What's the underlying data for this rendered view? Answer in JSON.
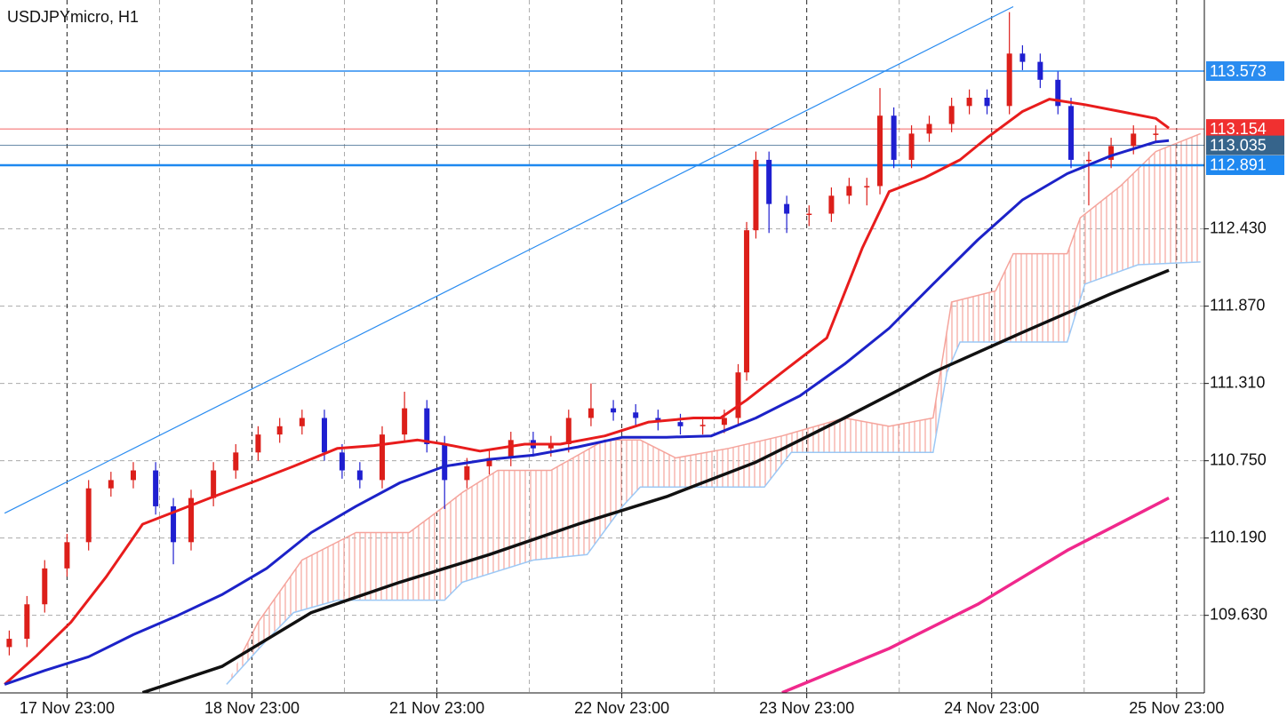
{
  "chart_data": {
    "type": "candlestick",
    "title": "USDJPYmicro, H1",
    "xlim": [
      0,
      156.3
    ],
    "ylim": [
      109.068,
      114.088
    ],
    "xticks": [
      {
        "value": 8.7,
        "label": "17 Nov 23:00"
      },
      {
        "value": 32.7,
        "label": "18 Nov 23:00"
      },
      {
        "value": 56.7,
        "label": "21 Nov 23:00"
      },
      {
        "value": 80.7,
        "label": "22 Nov 23:00"
      },
      {
        "value": 104.7,
        "label": "23 Nov 23:00"
      },
      {
        "value": 128.7,
        "label": "24 Nov 23:00"
      },
      {
        "value": 152.7,
        "label": "25 Nov 23:00"
      }
    ],
    "xminor": [
      20.7,
      44.7,
      68.7,
      92.7,
      116.7,
      140.7
    ],
    "yticks": [
      {
        "value": 112.43,
        "label": "112.430"
      },
      {
        "value": 111.87,
        "label": "111.870"
      },
      {
        "value": 111.31,
        "label": "111.310"
      },
      {
        "value": 110.75,
        "label": "110.750"
      },
      {
        "value": 110.19,
        "label": "110.190"
      },
      {
        "value": 109.63,
        "label": "109.630"
      }
    ],
    "grid": true,
    "up_color": "#dc1f1a",
    "down_color": "#1f1fd0",
    "x": [
      1.2,
      3.5,
      5.8,
      8.7,
      11.5,
      14.4,
      17.3,
      20.2,
      22.5,
      24.8,
      27.7,
      30.6,
      33.5,
      36.3,
      39.2,
      42.1,
      44.4,
      46.7,
      49.6,
      52.5,
      55.4,
      57.7,
      60.6,
      63.5,
      66.3,
      69.2,
      71.5,
      73.8,
      76.7,
      79.6,
      82.5,
      85.4,
      88.3,
      91.2,
      94.0,
      95.8,
      96.9,
      98.1,
      99.8,
      102.1,
      105.0,
      107.9,
      110.2,
      112.5,
      114.2,
      116.0,
      118.3,
      120.6,
      123.5,
      125.8,
      128.1,
      131.0,
      132.7,
      135.0,
      137.3,
      139.0,
      141.3,
      144.2,
      147.1,
      150.0
    ],
    "open": [
      109.4,
      109.46,
      109.71,
      109.97,
      110.16,
      110.55,
      110.61,
      110.68,
      110.42,
      110.16,
      110.48,
      110.68,
      110.81,
      110.94,
      111.0,
      111.06,
      110.81,
      110.68,
      110.61,
      110.94,
      111.13,
      110.87,
      110.61,
      110.71,
      110.77,
      110.9,
      110.84,
      110.87,
      111.06,
      111.13,
      111.1,
      111.06,
      111.03,
      111.0,
      111.01,
      111.06,
      111.39,
      112.42,
      112.93,
      112.61,
      112.54,
      112.54,
      112.67,
      112.74,
      112.74,
      113.25,
      112.93,
      113.12,
      113.19,
      113.32,
      113.38,
      113.32,
      113.7,
      113.64,
      113.51,
      113.32,
      112.93,
      112.93,
      113.03,
      113.12
    ],
    "high": [
      109.52,
      109.77,
      110.03,
      110.22,
      110.61,
      110.67,
      110.74,
      110.74,
      110.48,
      110.54,
      110.74,
      110.87,
      111.0,
      111.06,
      111.12,
      111.12,
      110.87,
      110.74,
      111.0,
      111.25,
      111.19,
      110.93,
      110.77,
      110.83,
      110.96,
      110.96,
      110.93,
      111.12,
      111.31,
      111.19,
      111.16,
      111.12,
      111.09,
      111.07,
      111.12,
      111.45,
      112.48,
      112.99,
      112.99,
      112.67,
      112.6,
      112.73,
      112.8,
      112.8,
      113.45,
      113.31,
      113.18,
      113.25,
      113.38,
      113.44,
      113.44,
      114.0,
      113.76,
      113.7,
      113.57,
      113.38,
      112.99,
      113.09,
      113.18,
      113.18
    ],
    "low": [
      109.34,
      109.4,
      109.65,
      109.91,
      110.1,
      110.49,
      110.55,
      110.36,
      110.0,
      110.1,
      110.42,
      110.62,
      110.75,
      110.88,
      110.94,
      110.75,
      110.62,
      110.55,
      110.55,
      110.88,
      110.81,
      110.4,
      110.55,
      110.65,
      110.71,
      110.78,
      110.78,
      110.81,
      111.0,
      111.04,
      111.0,
      110.97,
      110.94,
      110.94,
      110.95,
      111.0,
      111.33,
      112.36,
      112.4,
      112.4,
      112.45,
      112.48,
      112.61,
      112.6,
      112.68,
      112.87,
      112.87,
      113.06,
      113.13,
      113.26,
      113.26,
      113.26,
      113.58,
      113.45,
      113.26,
      112.87,
      112.6,
      112.87,
      112.97,
      113.06
    ],
    "close": [
      109.46,
      109.71,
      109.97,
      110.16,
      110.55,
      110.61,
      110.68,
      110.42,
      110.16,
      110.48,
      110.68,
      110.81,
      110.94,
      111.0,
      111.06,
      110.81,
      110.68,
      110.61,
      110.94,
      111.13,
      110.87,
      110.61,
      110.71,
      110.77,
      110.9,
      110.84,
      110.87,
      111.06,
      111.13,
      111.1,
      111.06,
      111.03,
      111.0,
      111.01,
      111.06,
      111.39,
      112.42,
      112.93,
      112.61,
      112.54,
      112.54,
      112.67,
      112.74,
      112.74,
      113.25,
      112.93,
      113.12,
      113.19,
      113.32,
      113.38,
      113.32,
      113.7,
      113.64,
      113.51,
      113.32,
      112.93,
      112.93,
      113.03,
      113.12,
      113.12
    ],
    "cloud": {
      "color": "#f5a49c",
      "span_a": {
        "color": "#f5a49c",
        "x": [
          31.2,
          33.5,
          39.2,
          46.2,
          53.1,
          57.7,
          60.0,
          64.6,
          71.5,
          78.5,
          83.1,
          87.7,
          94.6,
          101.5,
          109.6,
          115.4,
          121.1,
          123.5,
          129.2,
          131.5,
          138.5,
          140.2,
          145.4,
          150.0,
          155.8
        ],
        "values": [
          109.33,
          109.58,
          110.03,
          110.23,
          110.23,
          110.42,
          110.52,
          110.68,
          110.68,
          110.9,
          110.9,
          110.77,
          110.84,
          110.93,
          111.06,
          111.0,
          111.06,
          111.9,
          111.98,
          112.25,
          112.25,
          112.51,
          112.74,
          112.99,
          113.12
        ]
      },
      "span_b": {
        "color": "#9cc8f5",
        "x": [
          29.4,
          34.6,
          38.1,
          43.8,
          57.7,
          60.0,
          69.2,
          76.2,
          80.8,
          83.1,
          99.2,
          102.7,
          121.1,
          122.9,
          124.6,
          138.5,
          140.8,
          147.7,
          155.8
        ],
        "values": [
          109.13,
          109.45,
          109.65,
          109.74,
          109.74,
          109.87,
          110.03,
          110.07,
          110.42,
          110.56,
          110.56,
          110.81,
          110.81,
          111.39,
          111.61,
          111.61,
          112.03,
          112.17,
          112.19
        ]
      }
    },
    "lines": [
      {
        "color": "#e81c1c",
        "width": 3,
        "x": [
          0.6,
          4.6,
          9.2,
          13.8,
          18.5,
          23.1,
          27.7,
          33.5,
          38.1,
          43.8,
          48.5,
          54.2,
          57.7,
          62.3,
          68.1,
          72.7,
          78.5,
          84.2,
          90.0,
          93.5,
          96.9,
          101.5,
          107.3,
          111.9,
          115.4,
          120.0,
          124.6,
          128.1,
          132.7,
          136.2,
          140.8,
          145.4,
          150.0,
          151.7
        ],
        "values": [
          109.13,
          109.33,
          109.58,
          109.91,
          110.29,
          110.39,
          110.49,
          110.61,
          110.71,
          110.84,
          110.86,
          110.9,
          110.87,
          110.82,
          110.87,
          110.87,
          110.93,
          111.03,
          111.06,
          111.06,
          111.19,
          111.39,
          111.64,
          112.29,
          112.7,
          112.8,
          112.93,
          113.09,
          113.28,
          113.37,
          113.33,
          113.28,
          113.23,
          113.16
        ]
      },
      {
        "color": "#1c22c8",
        "width": 3,
        "x": [
          0.6,
          5.8,
          11.5,
          17.3,
          23.1,
          28.8,
          34.6,
          40.4,
          46.2,
          51.9,
          57.7,
          63.5,
          69.2,
          75.0,
          80.8,
          86.5,
          92.3,
          98.1,
          103.8,
          109.6,
          115.4,
          121.1,
          126.9,
          132.7,
          138.5,
          144.2,
          150.0,
          151.7
        ],
        "values": [
          109.13,
          109.23,
          109.33,
          109.49,
          109.63,
          109.78,
          109.97,
          110.23,
          110.42,
          110.59,
          110.71,
          110.76,
          110.79,
          110.85,
          110.92,
          110.92,
          110.93,
          111.06,
          111.22,
          111.45,
          111.71,
          112.03,
          112.35,
          112.64,
          112.83,
          112.96,
          113.06,
          113.07
        ]
      },
      {
        "color": "#111111",
        "width": 3.5,
        "x": [
          18.5,
          28.8,
          40.4,
          51.9,
          63.5,
          75.0,
          86.5,
          98.1,
          109.6,
          121.1,
          132.7,
          144.2,
          151.7
        ],
        "values": [
          109.07,
          109.26,
          109.65,
          109.87,
          110.07,
          110.29,
          110.49,
          110.74,
          111.06,
          111.39,
          111.68,
          111.96,
          112.13
        ]
      },
      {
        "color": "#f0288c",
        "width": 3.5,
        "x": [
          101.5,
          115.4,
          126.9,
          138.5,
          151.7
        ],
        "values": [
          109.07,
          109.39,
          109.71,
          110.1,
          110.48
        ]
      },
      {
        "color": "#2a8cf0",
        "width": 1.2,
        "x": [
          0.6,
          131.5
        ],
        "values": [
          110.37,
          114.04
        ]
      }
    ],
    "price_lines": [
      {
        "value": 113.573,
        "color": "#2a8cf0"
      },
      {
        "value": 113.154,
        "color": "#f03030"
      },
      {
        "value": 113.035,
        "color": "#36648b"
      },
      {
        "value": 112.891,
        "color": "#1e88f0"
      }
    ]
  }
}
